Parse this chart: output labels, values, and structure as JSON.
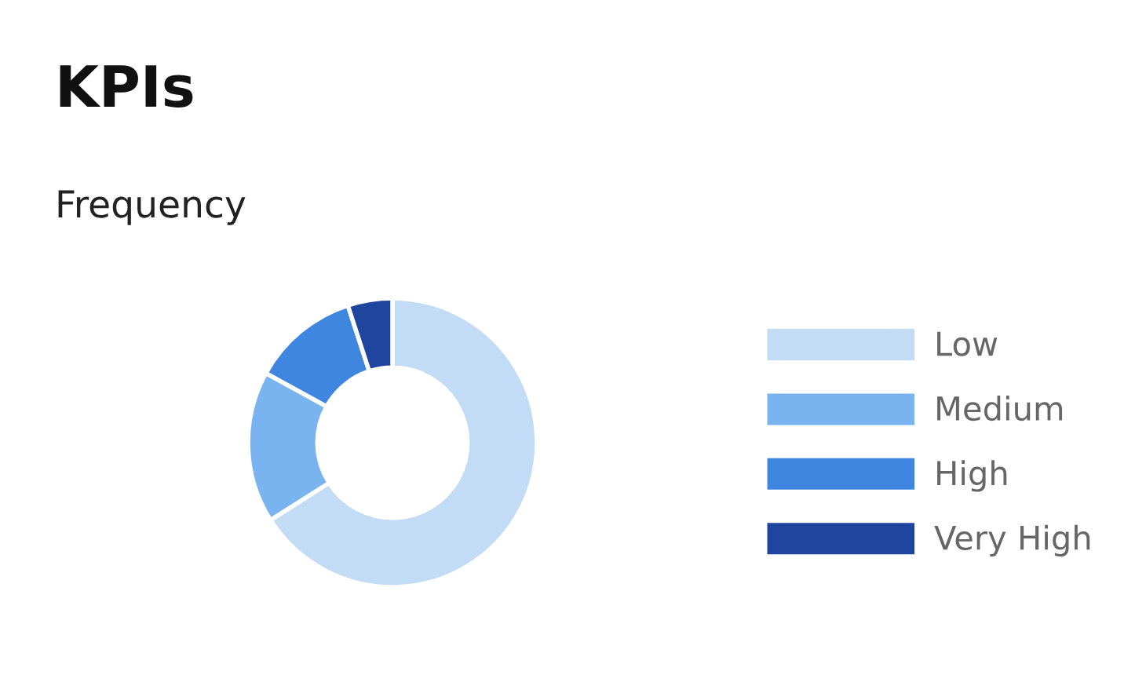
{
  "chart_data": {
    "type": "donut",
    "title": "KPIs",
    "subtitle": "Frequency",
    "categories": [
      "Low",
      "Medium",
      "High",
      "Very High"
    ],
    "values": [
      66,
      17,
      12,
      5
    ],
    "colors": [
      "#c2dcf5",
      "#7ab4f0",
      "#3f86e0",
      "#1f459e"
    ],
    "legend": "right"
  }
}
